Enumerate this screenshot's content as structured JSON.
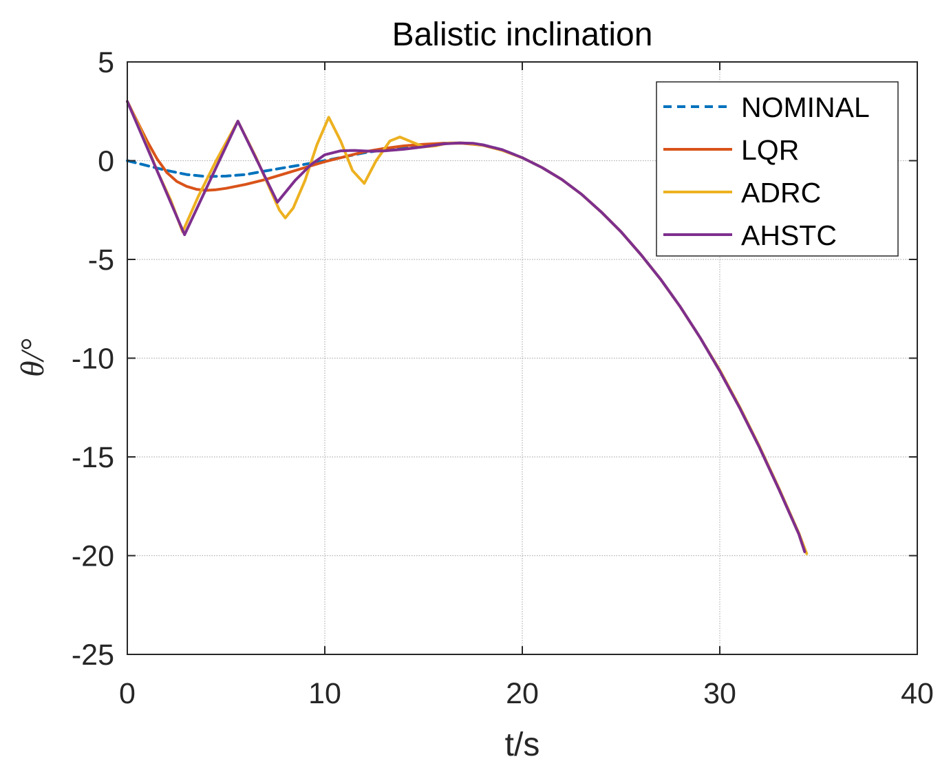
{
  "chart_data": {
    "type": "line",
    "title": "Balistic inclination",
    "xlabel": "t/s",
    "ylabel": "θ/°",
    "xlim": [
      0,
      40
    ],
    "ylim": [
      -25,
      5
    ],
    "xticks": [
      0,
      10,
      20,
      30,
      40
    ],
    "yticks": [
      5,
      0,
      -5,
      -10,
      -15,
      -20,
      -25
    ],
    "xtick_labels": [
      "0",
      "10",
      "20",
      "30",
      "40"
    ],
    "ytick_labels": [
      "5",
      "0",
      "-5",
      "-10",
      "-15",
      "-20",
      "-25"
    ],
    "grid": true,
    "legend_position": "top-right",
    "series": [
      {
        "name": "NOMINAL",
        "color": "#0072BD",
        "dashed": true,
        "points": [
          [
            0,
            0
          ],
          [
            1,
            -0.25
          ],
          [
            2,
            -0.5
          ],
          [
            3,
            -0.7
          ],
          [
            4,
            -0.8
          ],
          [
            5,
            -0.78
          ],
          [
            6,
            -0.7
          ],
          [
            7,
            -0.52
          ],
          [
            8,
            -0.35
          ],
          [
            9,
            -0.18
          ],
          [
            10,
            0
          ],
          [
            11,
            0.2
          ],
          [
            12,
            0.4
          ],
          [
            13,
            0.55
          ],
          [
            14,
            0.68
          ],
          [
            15,
            0.8
          ],
          [
            16,
            0.88
          ],
          [
            17,
            0.9
          ],
          [
            18,
            0.8
          ],
          [
            19,
            0.55
          ],
          [
            20,
            0.15
          ],
          [
            21,
            -0.35
          ],
          [
            22,
            -0.95
          ],
          [
            23,
            -1.7
          ],
          [
            24,
            -2.6
          ],
          [
            25,
            -3.6
          ],
          [
            26,
            -4.75
          ],
          [
            27,
            -6
          ],
          [
            28,
            -7.4
          ],
          [
            29,
            -8.95
          ],
          [
            30,
            -10.65
          ],
          [
            31,
            -12.5
          ],
          [
            32,
            -14.5
          ],
          [
            33,
            -16.65
          ],
          [
            34,
            -18.9
          ],
          [
            34.3,
            -19.8
          ]
        ]
      },
      {
        "name": "LQR",
        "color": "#D95319",
        "dashed": false,
        "points": [
          [
            0,
            3
          ],
          [
            0.5,
            2
          ],
          [
            1,
            1
          ],
          [
            1.5,
            0.1
          ],
          [
            2,
            -0.6
          ],
          [
            2.5,
            -1.05
          ],
          [
            3,
            -1.3
          ],
          [
            3.5,
            -1.45
          ],
          [
            4,
            -1.5
          ],
          [
            4.5,
            -1.47
          ],
          [
            5,
            -1.4
          ],
          [
            6,
            -1.2
          ],
          [
            7,
            -0.95
          ],
          [
            8,
            -0.65
          ],
          [
            9,
            -0.35
          ],
          [
            10,
            -0.05
          ],
          [
            11,
            0.2
          ],
          [
            12,
            0.45
          ],
          [
            13,
            0.62
          ],
          [
            14,
            0.75
          ],
          [
            15,
            0.83
          ],
          [
            16,
            0.88
          ],
          [
            17,
            0.88
          ],
          [
            18,
            0.78
          ],
          [
            19,
            0.52
          ],
          [
            20,
            0.15
          ],
          [
            21,
            -0.35
          ],
          [
            22,
            -0.95
          ],
          [
            23,
            -1.7
          ],
          [
            24,
            -2.6
          ],
          [
            25,
            -3.6
          ],
          [
            26,
            -4.75
          ],
          [
            27,
            -6
          ],
          [
            28,
            -7.4
          ],
          [
            29,
            -8.95
          ],
          [
            30,
            -10.65
          ],
          [
            31,
            -12.5
          ],
          [
            32,
            -14.5
          ],
          [
            33,
            -16.65
          ],
          [
            34,
            -18.9
          ],
          [
            34.3,
            -19.8
          ]
        ]
      },
      {
        "name": "ADRC",
        "color": "#EDB120",
        "dashed": false,
        "points": [
          [
            0,
            3
          ],
          [
            0.7,
            1.5
          ],
          [
            1.5,
            -0.5
          ],
          [
            2.2,
            -2
          ],
          [
            2.8,
            -3.6
          ],
          [
            3.6,
            -1.8
          ],
          [
            4.5,
            0
          ],
          [
            5.6,
            2
          ],
          [
            6.5,
            0.2
          ],
          [
            7.3,
            -1.6
          ],
          [
            7.7,
            -2.5
          ],
          [
            8,
            -2.9
          ],
          [
            8.4,
            -2.4
          ],
          [
            9,
            -1
          ],
          [
            9.6,
            0.8
          ],
          [
            10.2,
            2.2
          ],
          [
            10.8,
            1
          ],
          [
            11.4,
            -0.5
          ],
          [
            12,
            -1.15
          ],
          [
            12.6,
            0
          ],
          [
            13.3,
            1
          ],
          [
            13.8,
            1.2
          ],
          [
            14.4,
            0.95
          ],
          [
            15,
            0.7
          ],
          [
            15.6,
            0.75
          ],
          [
            16.3,
            0.9
          ],
          [
            17,
            0.9
          ],
          [
            18,
            0.78
          ],
          [
            19,
            0.52
          ],
          [
            20,
            0.15
          ],
          [
            21,
            -0.35
          ],
          [
            22,
            -0.95
          ],
          [
            23,
            -1.7
          ],
          [
            24,
            -2.6
          ],
          [
            25,
            -3.6
          ],
          [
            26,
            -4.75
          ],
          [
            27,
            -6
          ],
          [
            28,
            -7.4
          ],
          [
            29,
            -8.95
          ],
          [
            30,
            -10.6
          ],
          [
            31,
            -12.45
          ],
          [
            32,
            -14.45
          ],
          [
            33,
            -16.6
          ],
          [
            34,
            -18.85
          ],
          [
            34.4,
            -19.9
          ]
        ]
      },
      {
        "name": "AHSTC",
        "color": "#7E2F8E",
        "dashed": false,
        "points": [
          [
            0,
            3
          ],
          [
            2.9,
            -3.75
          ],
          [
            5.6,
            2
          ],
          [
            7.6,
            -2.1
          ],
          [
            8.5,
            -1
          ],
          [
            9.3,
            -0.2
          ],
          [
            10,
            0.3
          ],
          [
            10.8,
            0.5
          ],
          [
            11.5,
            0.52
          ],
          [
            12.3,
            0.48
          ],
          [
            13,
            0.5
          ],
          [
            14,
            0.58
          ],
          [
            15,
            0.7
          ],
          [
            16,
            0.85
          ],
          [
            16.8,
            0.9
          ],
          [
            17.5,
            0.88
          ],
          [
            18,
            0.8
          ],
          [
            19,
            0.55
          ],
          [
            20,
            0.15
          ],
          [
            21,
            -0.35
          ],
          [
            22,
            -0.95
          ],
          [
            23,
            -1.7
          ],
          [
            24,
            -2.6
          ],
          [
            25,
            -3.6
          ],
          [
            26,
            -4.75
          ],
          [
            27,
            -6
          ],
          [
            28,
            -7.4
          ],
          [
            29,
            -8.95
          ],
          [
            30,
            -10.65
          ],
          [
            31,
            -12.5
          ],
          [
            32,
            -14.5
          ],
          [
            33,
            -16.65
          ],
          [
            34,
            -18.9
          ],
          [
            34.3,
            -19.8
          ]
        ]
      }
    ]
  }
}
